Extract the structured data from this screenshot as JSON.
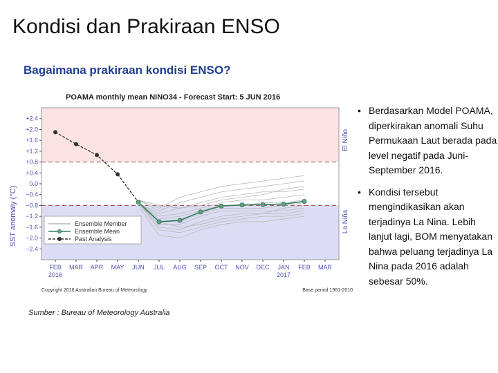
{
  "slide": {
    "title": "Kondisi dan Prakiraan ENSO",
    "subtitle": "Bagaimana prakiraan kondisi ENSO?",
    "source": "Sumber : Bureau of Meteorology Australia",
    "bullets": [
      "Berdasarkan Model POAMA, diperkirakan anomali Suhu Permukaan Laut berada pada level negatif pada Juni-September 2016.",
      "Kondisi tersebut mengindikasikan akan terjadinya La Nina. Lebih lanjut lagi, BOM menyatakan bahwa peluang terjadinya La Nina pada 2016 adalah sebesar 50%."
    ],
    "bullet_symbol": "•"
  },
  "chart_data": {
    "type": "line",
    "title": "POAMA monthly mean NINO34 - Forecast Start: 5 JUN 2016",
    "ylabel": "SST anomaly (°C)",
    "ylim": [
      -2.8,
      2.8
    ],
    "yticks": [
      2.4,
      2.0,
      1.6,
      1.2,
      0.8,
      0.4,
      0.0,
      -0.4,
      -0.8,
      -1.2,
      -1.6,
      -2.0,
      -2.4
    ],
    "ytick_labels": [
      "+2.4",
      "+2.0",
      "+1.6",
      "+1.2",
      "+0.8",
      "+0.4",
      "0.0",
      "−0.4",
      "−0.8",
      "−1.2",
      "−1.6",
      "−2.0",
      "−2.4"
    ],
    "categories": [
      "FEB",
      "MAR",
      "APR",
      "MAY",
      "JUN",
      "JUL",
      "AUG",
      "SEP",
      "OCT",
      "NOV",
      "DEC",
      "JAN",
      "FEB",
      "MAR"
    ],
    "year_labels": [
      {
        "index": 0,
        "text": "2016"
      },
      {
        "index": 11,
        "text": "2017"
      }
    ],
    "thresholds": [
      0.8,
      -0.8
    ],
    "regions": [
      {
        "name": "El Niño",
        "from": 0.8,
        "to": 2.8,
        "color": "#fbe3e3"
      },
      {
        "name": "La Niña",
        "from": -2.8,
        "to": -0.8,
        "color": "#dcdcf4"
      }
    ],
    "series": [
      {
        "name": "Past Analysis",
        "style": "dark-dashed",
        "x": [
          0,
          1,
          2,
          3
        ],
        "values": [
          1.9,
          1.46,
          1.06,
          0.35
        ]
      },
      {
        "name": "Ensemble Mean",
        "style": "green-markers",
        "x": [
          4,
          5,
          6,
          7,
          8,
          9,
          10,
          11,
          12
        ],
        "values": [
          -0.68,
          -1.4,
          -1.35,
          -1.04,
          -0.82,
          -0.78,
          -0.77,
          -0.75,
          -0.65
        ]
      },
      {
        "name": "Ensemble Member",
        "style": "grey-thin",
        "members": [
          [
            -0.6,
            -0.9,
            -0.5,
            -0.3,
            -0.1,
            0.0,
            0.1,
            0.2,
            0.3
          ],
          [
            -0.6,
            -1.0,
            -0.7,
            -0.5,
            -0.3,
            -0.2,
            -0.1,
            0.0,
            0.1
          ],
          [
            -0.7,
            -1.1,
            -0.9,
            -0.7,
            -0.5,
            -0.4,
            -0.3,
            -0.3,
            -0.2
          ],
          [
            -0.7,
            -1.2,
            -1.1,
            -0.9,
            -0.7,
            -0.6,
            -0.6,
            -0.5,
            -0.4
          ],
          [
            -0.7,
            -1.3,
            -1.2,
            -1.0,
            -0.8,
            -0.8,
            -0.7,
            -0.7,
            -0.6
          ],
          [
            -0.7,
            -1.4,
            -1.4,
            -1.1,
            -0.9,
            -0.9,
            -0.9,
            -0.8,
            -0.7
          ],
          [
            -0.7,
            -1.5,
            -1.5,
            -1.2,
            -1.0,
            -1.0,
            -1.0,
            -1.0,
            -0.9
          ],
          [
            -0.7,
            -1.6,
            -1.7,
            -1.4,
            -1.2,
            -1.1,
            -1.1,
            -1.1,
            -1.0
          ],
          [
            -0.7,
            -1.7,
            -1.8,
            -1.6,
            -1.4,
            -1.3,
            -1.2,
            -1.2,
            -1.1
          ],
          [
            -0.8,
            -1.9,
            -2.0,
            -1.7,
            -1.5,
            -1.4,
            -1.4,
            -1.3,
            -1.2
          ],
          [
            -0.6,
            -0.8,
            -0.9,
            -0.8,
            -0.6,
            -0.5,
            -0.4,
            -0.2,
            -0.1
          ],
          [
            -0.7,
            -1.4,
            -1.6,
            -1.5,
            -1.3,
            -1.2,
            -1.1,
            -0.9,
            -0.8
          ]
        ]
      }
    ],
    "legend": {
      "placement": "lower-left",
      "entries": [
        "Ensemble Member",
        "Ensemble Mean",
        "Past Analysis"
      ]
    },
    "region_labels": [
      "El Niño",
      "La Niña"
    ],
    "footer_left": "Copyright 2016 Australian Bureau of Meteorology",
    "footer_right": "Base period 1981-2010",
    "colors": {
      "ensemble_mean": "#2e7d5b",
      "marker_fill": "#6a9e86",
      "past_analysis": "#333333",
      "member": "#b8b8b8",
      "threshold": "#aa5555"
    }
  }
}
